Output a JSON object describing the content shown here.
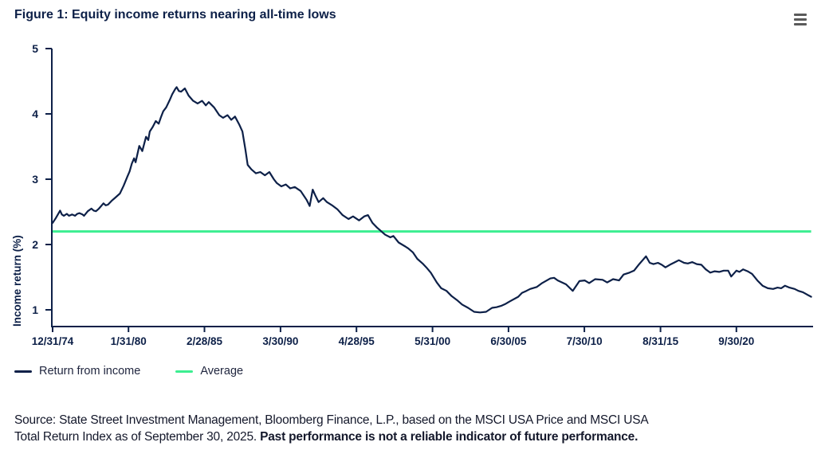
{
  "figure_title": "Figure 1: Equity income returns nearing all-time lows",
  "legend": {
    "items": [
      {
        "label": "Return from income",
        "color": "#0d2048"
      },
      {
        "label": "Average",
        "color": "#3cee91"
      }
    ]
  },
  "source": {
    "line1": "Source: State Street Investment Management, Bloomberg Finance, L.P., based on the MSCI USA Price and MSCI USA",
    "line2": "Total Return Index as of September 30, 2025.",
    "line2_bold": "Past performance is not a reliable indicator of future performance."
  },
  "chart_data": {
    "type": "line",
    "title": "Figure 1: Equity income returns nearing all-time lows",
    "xlabel": "",
    "ylabel": "Income return (%)",
    "ylim": [
      0.75,
      5
    ],
    "xlim_years": [
      1975.0,
      2025.75
    ],
    "grid": false,
    "legend_position": "bottom-left",
    "y_ticks": [
      5,
      4,
      3,
      2,
      1
    ],
    "x_ticks": [
      "12/31/74",
      "1/31/80",
      "2/28/85",
      "3/30/90",
      "4/28/95",
      "5/31/00",
      "6/30/05",
      "7/30/10",
      "8/31/15",
      "9/30/20"
    ],
    "x_tick_years": [
      1975.0,
      1980.08,
      1985.16,
      1990.25,
      1995.33,
      2000.42,
      2005.5,
      2010.58,
      2015.67,
      2020.75
    ],
    "series": [
      {
        "name": "Return from income",
        "color": "#0d2048",
        "points": [
          [
            1975.0,
            2.33
          ],
          [
            1975.2,
            2.4
          ],
          [
            1975.35,
            2.46
          ],
          [
            1975.5,
            2.52
          ],
          [
            1975.62,
            2.46
          ],
          [
            1975.75,
            2.44
          ],
          [
            1975.95,
            2.47
          ],
          [
            1976.1,
            2.44
          ],
          [
            1976.3,
            2.46
          ],
          [
            1976.5,
            2.44
          ],
          [
            1976.65,
            2.47
          ],
          [
            1976.8,
            2.48
          ],
          [
            1977.0,
            2.46
          ],
          [
            1977.1,
            2.44
          ],
          [
            1977.35,
            2.51
          ],
          [
            1977.6,
            2.55
          ],
          [
            1977.75,
            2.52
          ],
          [
            1977.9,
            2.51
          ],
          [
            1978.1,
            2.55
          ],
          [
            1978.4,
            2.63
          ],
          [
            1978.55,
            2.6
          ],
          [
            1978.7,
            2.61
          ],
          [
            1978.95,
            2.67
          ],
          [
            1979.2,
            2.72
          ],
          [
            1979.5,
            2.78
          ],
          [
            1979.75,
            2.9
          ],
          [
            1980.0,
            3.04
          ],
          [
            1980.15,
            3.12
          ],
          [
            1980.3,
            3.24
          ],
          [
            1980.45,
            3.32
          ],
          [
            1980.55,
            3.26
          ],
          [
            1980.8,
            3.51
          ],
          [
            1981.0,
            3.43
          ],
          [
            1981.25,
            3.65
          ],
          [
            1981.4,
            3.6
          ],
          [
            1981.5,
            3.73
          ],
          [
            1981.7,
            3.8
          ],
          [
            1981.9,
            3.89
          ],
          [
            1982.1,
            3.85
          ],
          [
            1982.25,
            3.95
          ],
          [
            1982.4,
            4.04
          ],
          [
            1982.6,
            4.1
          ],
          [
            1982.85,
            4.22
          ],
          [
            1983.0,
            4.3
          ],
          [
            1983.2,
            4.38
          ],
          [
            1983.3,
            4.41
          ],
          [
            1983.45,
            4.35
          ],
          [
            1983.6,
            4.34
          ],
          [
            1983.85,
            4.39
          ],
          [
            1984.1,
            4.28
          ],
          [
            1984.4,
            4.2
          ],
          [
            1984.7,
            4.16
          ],
          [
            1985.0,
            4.2
          ],
          [
            1985.25,
            4.13
          ],
          [
            1985.45,
            4.18
          ],
          [
            1985.8,
            4.1
          ],
          [
            1986.15,
            3.98
          ],
          [
            1986.4,
            3.94
          ],
          [
            1986.7,
            3.98
          ],
          [
            1986.95,
            3.91
          ],
          [
            1987.2,
            3.96
          ],
          [
            1987.5,
            3.83
          ],
          [
            1987.7,
            3.73
          ],
          [
            1987.9,
            3.45
          ],
          [
            1988.05,
            3.22
          ],
          [
            1988.3,
            3.15
          ],
          [
            1988.6,
            3.09
          ],
          [
            1988.9,
            3.11
          ],
          [
            1989.2,
            3.06
          ],
          [
            1989.5,
            3.11
          ],
          [
            1989.8,
            3.0
          ],
          [
            1990.0,
            2.94
          ],
          [
            1990.3,
            2.89
          ],
          [
            1990.6,
            2.92
          ],
          [
            1990.9,
            2.86
          ],
          [
            1991.2,
            2.88
          ],
          [
            1991.6,
            2.82
          ],
          [
            1992.0,
            2.68
          ],
          [
            1992.2,
            2.59
          ],
          [
            1992.4,
            2.84
          ],
          [
            1992.6,
            2.74
          ],
          [
            1992.8,
            2.65
          ],
          [
            1993.1,
            2.71
          ],
          [
            1993.35,
            2.65
          ],
          [
            1993.7,
            2.6
          ],
          [
            1994.05,
            2.54
          ],
          [
            1994.4,
            2.45
          ],
          [
            1994.8,
            2.39
          ],
          [
            1995.1,
            2.43
          ],
          [
            1995.5,
            2.37
          ],
          [
            1995.85,
            2.43
          ],
          [
            1996.1,
            2.45
          ],
          [
            1996.4,
            2.33
          ],
          [
            1996.7,
            2.26
          ],
          [
            1997.0,
            2.2
          ],
          [
            1997.25,
            2.15
          ],
          [
            1997.6,
            2.11
          ],
          [
            1997.8,
            2.13
          ],
          [
            1998.15,
            2.03
          ],
          [
            1998.6,
            1.97
          ],
          [
            1998.8,
            1.94
          ],
          [
            1999.1,
            1.88
          ],
          [
            1999.4,
            1.78
          ],
          [
            1999.75,
            1.71
          ],
          [
            2000.0,
            1.65
          ],
          [
            2000.3,
            1.57
          ],
          [
            2000.7,
            1.42
          ],
          [
            2001.0,
            1.33
          ],
          [
            2001.35,
            1.29
          ],
          [
            2001.7,
            1.21
          ],
          [
            2002.05,
            1.15
          ],
          [
            2002.4,
            1.08
          ],
          [
            2002.8,
            1.03
          ],
          [
            2003.2,
            0.97
          ],
          [
            2003.6,
            0.96
          ],
          [
            2004.0,
            0.97
          ],
          [
            2004.4,
            1.03
          ],
          [
            2004.7,
            1.04
          ],
          [
            2005.0,
            1.06
          ],
          [
            2005.3,
            1.09
          ],
          [
            2005.6,
            1.13
          ],
          [
            2006.15,
            1.2
          ],
          [
            2006.4,
            1.26
          ],
          [
            2006.7,
            1.29
          ],
          [
            2006.95,
            1.32
          ],
          [
            2007.4,
            1.35
          ],
          [
            2007.75,
            1.41
          ],
          [
            2008.3,
            1.48
          ],
          [
            2008.55,
            1.49
          ],
          [
            2008.8,
            1.45
          ],
          [
            2009.35,
            1.39
          ],
          [
            2009.8,
            1.29
          ],
          [
            2010.25,
            1.44
          ],
          [
            2010.6,
            1.45
          ],
          [
            2010.9,
            1.41
          ],
          [
            2011.3,
            1.47
          ],
          [
            2011.8,
            1.46
          ],
          [
            2012.1,
            1.42
          ],
          [
            2012.5,
            1.47
          ],
          [
            2012.9,
            1.45
          ],
          [
            2013.2,
            1.54
          ],
          [
            2013.6,
            1.57
          ],
          [
            2013.9,
            1.6
          ],
          [
            2014.25,
            1.7
          ],
          [
            2014.7,
            1.82
          ],
          [
            2014.95,
            1.72
          ],
          [
            2015.2,
            1.7
          ],
          [
            2015.5,
            1.72
          ],
          [
            2015.75,
            1.69
          ],
          [
            2016.0,
            1.65
          ],
          [
            2016.3,
            1.69
          ],
          [
            2016.65,
            1.73
          ],
          [
            2016.9,
            1.76
          ],
          [
            2017.25,
            1.72
          ],
          [
            2017.5,
            1.71
          ],
          [
            2017.8,
            1.73
          ],
          [
            2018.1,
            1.7
          ],
          [
            2018.4,
            1.69
          ],
          [
            2018.7,
            1.62
          ],
          [
            2019.0,
            1.57
          ],
          [
            2019.3,
            1.59
          ],
          [
            2019.6,
            1.58
          ],
          [
            2019.9,
            1.6
          ],
          [
            2020.2,
            1.6
          ],
          [
            2020.4,
            1.51
          ],
          [
            2020.75,
            1.6
          ],
          [
            2020.95,
            1.58
          ],
          [
            2021.2,
            1.62
          ],
          [
            2021.5,
            1.59
          ],
          [
            2021.8,
            1.55
          ],
          [
            2022.15,
            1.45
          ],
          [
            2022.5,
            1.37
          ],
          [
            2022.85,
            1.33
          ],
          [
            2023.2,
            1.32
          ],
          [
            2023.5,
            1.34
          ],
          [
            2023.75,
            1.33
          ],
          [
            2024.0,
            1.37
          ],
          [
            2024.3,
            1.34
          ],
          [
            2024.65,
            1.32
          ],
          [
            2024.9,
            1.29
          ],
          [
            2025.2,
            1.27
          ],
          [
            2025.5,
            1.23
          ],
          [
            2025.75,
            1.2
          ]
        ]
      },
      {
        "name": "Average",
        "color": "#3cee91",
        "value": 2.2
      }
    ]
  }
}
